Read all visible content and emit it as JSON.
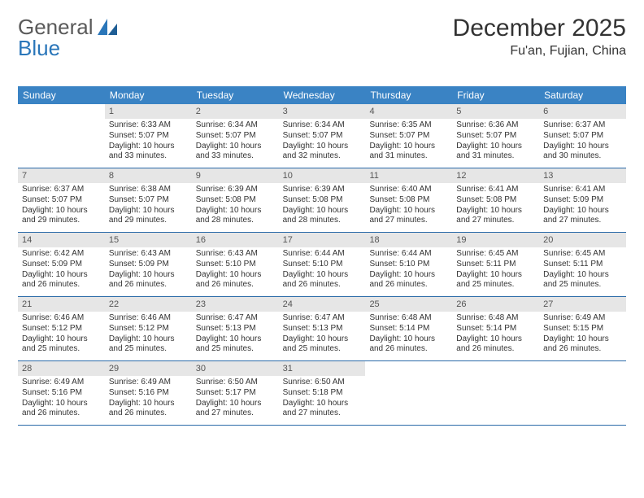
{
  "brand": {
    "part1": "General",
    "part2": "Blue"
  },
  "title": "December 2025",
  "location": "Fu'an, Fujian, China",
  "colors": {
    "header_bg": "#3a83c4",
    "header_text": "#ffffff",
    "daynum_bg": "#e6e6e6",
    "row_border": "#2a6aa8",
    "logo_gray": "#5a5a5a",
    "logo_blue": "#2a76b9",
    "body_text": "#333333"
  },
  "day_names": [
    "Sunday",
    "Monday",
    "Tuesday",
    "Wednesday",
    "Thursday",
    "Friday",
    "Saturday"
  ],
  "weeks": [
    [
      {
        "n": "",
        "sr": "",
        "ss": "",
        "dl": ""
      },
      {
        "n": "1",
        "sr": "Sunrise: 6:33 AM",
        "ss": "Sunset: 5:07 PM",
        "dl": "Daylight: 10 hours and 33 minutes."
      },
      {
        "n": "2",
        "sr": "Sunrise: 6:34 AM",
        "ss": "Sunset: 5:07 PM",
        "dl": "Daylight: 10 hours and 33 minutes."
      },
      {
        "n": "3",
        "sr": "Sunrise: 6:34 AM",
        "ss": "Sunset: 5:07 PM",
        "dl": "Daylight: 10 hours and 32 minutes."
      },
      {
        "n": "4",
        "sr": "Sunrise: 6:35 AM",
        "ss": "Sunset: 5:07 PM",
        "dl": "Daylight: 10 hours and 31 minutes."
      },
      {
        "n": "5",
        "sr": "Sunrise: 6:36 AM",
        "ss": "Sunset: 5:07 PM",
        "dl": "Daylight: 10 hours and 31 minutes."
      },
      {
        "n": "6",
        "sr": "Sunrise: 6:37 AM",
        "ss": "Sunset: 5:07 PM",
        "dl": "Daylight: 10 hours and 30 minutes."
      }
    ],
    [
      {
        "n": "7",
        "sr": "Sunrise: 6:37 AM",
        "ss": "Sunset: 5:07 PM",
        "dl": "Daylight: 10 hours and 29 minutes."
      },
      {
        "n": "8",
        "sr": "Sunrise: 6:38 AM",
        "ss": "Sunset: 5:07 PM",
        "dl": "Daylight: 10 hours and 29 minutes."
      },
      {
        "n": "9",
        "sr": "Sunrise: 6:39 AM",
        "ss": "Sunset: 5:08 PM",
        "dl": "Daylight: 10 hours and 28 minutes."
      },
      {
        "n": "10",
        "sr": "Sunrise: 6:39 AM",
        "ss": "Sunset: 5:08 PM",
        "dl": "Daylight: 10 hours and 28 minutes."
      },
      {
        "n": "11",
        "sr": "Sunrise: 6:40 AM",
        "ss": "Sunset: 5:08 PM",
        "dl": "Daylight: 10 hours and 27 minutes."
      },
      {
        "n": "12",
        "sr": "Sunrise: 6:41 AM",
        "ss": "Sunset: 5:08 PM",
        "dl": "Daylight: 10 hours and 27 minutes."
      },
      {
        "n": "13",
        "sr": "Sunrise: 6:41 AM",
        "ss": "Sunset: 5:09 PM",
        "dl": "Daylight: 10 hours and 27 minutes."
      }
    ],
    [
      {
        "n": "14",
        "sr": "Sunrise: 6:42 AM",
        "ss": "Sunset: 5:09 PM",
        "dl": "Daylight: 10 hours and 26 minutes."
      },
      {
        "n": "15",
        "sr": "Sunrise: 6:43 AM",
        "ss": "Sunset: 5:09 PM",
        "dl": "Daylight: 10 hours and 26 minutes."
      },
      {
        "n": "16",
        "sr": "Sunrise: 6:43 AM",
        "ss": "Sunset: 5:10 PM",
        "dl": "Daylight: 10 hours and 26 minutes."
      },
      {
        "n": "17",
        "sr": "Sunrise: 6:44 AM",
        "ss": "Sunset: 5:10 PM",
        "dl": "Daylight: 10 hours and 26 minutes."
      },
      {
        "n": "18",
        "sr": "Sunrise: 6:44 AM",
        "ss": "Sunset: 5:10 PM",
        "dl": "Daylight: 10 hours and 26 minutes."
      },
      {
        "n": "19",
        "sr": "Sunrise: 6:45 AM",
        "ss": "Sunset: 5:11 PM",
        "dl": "Daylight: 10 hours and 25 minutes."
      },
      {
        "n": "20",
        "sr": "Sunrise: 6:45 AM",
        "ss": "Sunset: 5:11 PM",
        "dl": "Daylight: 10 hours and 25 minutes."
      }
    ],
    [
      {
        "n": "21",
        "sr": "Sunrise: 6:46 AM",
        "ss": "Sunset: 5:12 PM",
        "dl": "Daylight: 10 hours and 25 minutes."
      },
      {
        "n": "22",
        "sr": "Sunrise: 6:46 AM",
        "ss": "Sunset: 5:12 PM",
        "dl": "Daylight: 10 hours and 25 minutes."
      },
      {
        "n": "23",
        "sr": "Sunrise: 6:47 AM",
        "ss": "Sunset: 5:13 PM",
        "dl": "Daylight: 10 hours and 25 minutes."
      },
      {
        "n": "24",
        "sr": "Sunrise: 6:47 AM",
        "ss": "Sunset: 5:13 PM",
        "dl": "Daylight: 10 hours and 25 minutes."
      },
      {
        "n": "25",
        "sr": "Sunrise: 6:48 AM",
        "ss": "Sunset: 5:14 PM",
        "dl": "Daylight: 10 hours and 26 minutes."
      },
      {
        "n": "26",
        "sr": "Sunrise: 6:48 AM",
        "ss": "Sunset: 5:14 PM",
        "dl": "Daylight: 10 hours and 26 minutes."
      },
      {
        "n": "27",
        "sr": "Sunrise: 6:49 AM",
        "ss": "Sunset: 5:15 PM",
        "dl": "Daylight: 10 hours and 26 minutes."
      }
    ],
    [
      {
        "n": "28",
        "sr": "Sunrise: 6:49 AM",
        "ss": "Sunset: 5:16 PM",
        "dl": "Daylight: 10 hours and 26 minutes."
      },
      {
        "n": "29",
        "sr": "Sunrise: 6:49 AM",
        "ss": "Sunset: 5:16 PM",
        "dl": "Daylight: 10 hours and 26 minutes."
      },
      {
        "n": "30",
        "sr": "Sunrise: 6:50 AM",
        "ss": "Sunset: 5:17 PM",
        "dl": "Daylight: 10 hours and 27 minutes."
      },
      {
        "n": "31",
        "sr": "Sunrise: 6:50 AM",
        "ss": "Sunset: 5:18 PM",
        "dl": "Daylight: 10 hours and 27 minutes."
      },
      {
        "n": "",
        "sr": "",
        "ss": "",
        "dl": ""
      },
      {
        "n": "",
        "sr": "",
        "ss": "",
        "dl": ""
      },
      {
        "n": "",
        "sr": "",
        "ss": "",
        "dl": ""
      }
    ]
  ]
}
